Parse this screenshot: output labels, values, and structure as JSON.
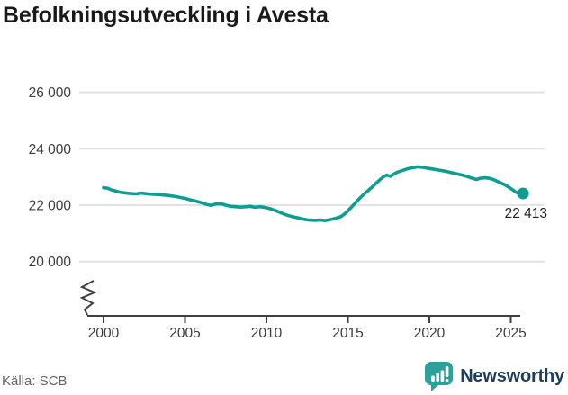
{
  "title": "Befolkningsutveckling i Avesta",
  "footer": {
    "source": "Källa: SCB",
    "brand": "Newsworthy"
  },
  "colors": {
    "line": "#0d9e91",
    "grid": "#e2e2e2",
    "axis": "#3f3f3f",
    "tick_label": "#3c3c3c",
    "annotation": "#1f1f1f",
    "brand_icon": "#2f9f99",
    "brand_text": "#1e3d5c"
  },
  "chart_data": {
    "type": "line",
    "title": "Befolkningsutveckling i Avesta",
    "xlabel": "",
    "ylabel": "",
    "x_ticks": [
      2000,
      2005,
      2010,
      2015,
      2020,
      2025
    ],
    "y_ticks": [
      20000,
      22000,
      24000,
      26000
    ],
    "y_tick_labels": [
      "20 000",
      "22 000",
      "24 000",
      "26 000"
    ],
    "xlim": [
      1999.5,
      2027
    ],
    "ylim": [
      19500,
      26800
    ],
    "grid": "horizontal",
    "legend": "none",
    "axis_break": true,
    "end_annotation": {
      "label": "22 413",
      "value": 22413,
      "x": 2025.75
    },
    "series": [
      {
        "color": "#0d9e91",
        "points": [
          [
            2000.0,
            22620
          ],
          [
            2000.25,
            22600
          ],
          [
            2000.5,
            22540
          ],
          [
            2000.75,
            22500
          ],
          [
            2001.0,
            22460
          ],
          [
            2001.5,
            22420
          ],
          [
            2002.0,
            22400
          ],
          [
            2002.3,
            22430
          ],
          [
            2002.7,
            22400
          ],
          [
            2003.0,
            22390
          ],
          [
            2003.5,
            22370
          ],
          [
            2004.0,
            22340
          ],
          [
            2004.5,
            22300
          ],
          [
            2005.0,
            22240
          ],
          [
            2005.3,
            22190
          ],
          [
            2005.6,
            22150
          ],
          [
            2006.0,
            22090
          ],
          [
            2006.3,
            22030
          ],
          [
            2006.6,
            21990
          ],
          [
            2006.9,
            22040
          ],
          [
            2007.2,
            22050
          ],
          [
            2007.5,
            22000
          ],
          [
            2007.8,
            21960
          ],
          [
            2008.0,
            21950
          ],
          [
            2008.4,
            21930
          ],
          [
            2008.8,
            21945
          ],
          [
            2009.0,
            21960
          ],
          [
            2009.3,
            21925
          ],
          [
            2009.6,
            21945
          ],
          [
            2010.0,
            21910
          ],
          [
            2010.3,
            21860
          ],
          [
            2010.6,
            21800
          ],
          [
            2011.0,
            21700
          ],
          [
            2011.3,
            21640
          ],
          [
            2011.6,
            21590
          ],
          [
            2012.0,
            21540
          ],
          [
            2012.3,
            21500
          ],
          [
            2012.6,
            21470
          ],
          [
            2013.0,
            21460
          ],
          [
            2013.3,
            21475
          ],
          [
            2013.6,
            21450
          ],
          [
            2014.0,
            21500
          ],
          [
            2014.3,
            21540
          ],
          [
            2014.6,
            21600
          ],
          [
            2014.8,
            21690
          ],
          [
            2015.0,
            21800
          ],
          [
            2015.25,
            21950
          ],
          [
            2015.5,
            22110
          ],
          [
            2015.75,
            22260
          ],
          [
            2016.0,
            22400
          ],
          [
            2016.25,
            22520
          ],
          [
            2016.5,
            22650
          ],
          [
            2016.75,
            22790
          ],
          [
            2017.0,
            22920
          ],
          [
            2017.2,
            23010
          ],
          [
            2017.4,
            23070
          ],
          [
            2017.6,
            23020
          ],
          [
            2017.8,
            23090
          ],
          [
            2018.0,
            23160
          ],
          [
            2018.3,
            23220
          ],
          [
            2018.6,
            23280
          ],
          [
            2019.0,
            23330
          ],
          [
            2019.3,
            23360
          ],
          [
            2019.6,
            23340
          ],
          [
            2020.0,
            23300
          ],
          [
            2020.3,
            23270
          ],
          [
            2020.6,
            23240
          ],
          [
            2021.0,
            23200
          ],
          [
            2021.3,
            23160
          ],
          [
            2021.6,
            23120
          ],
          [
            2022.0,
            23070
          ],
          [
            2022.3,
            23020
          ],
          [
            2022.6,
            22960
          ],
          [
            2022.9,
            22910
          ],
          [
            2023.1,
            22950
          ],
          [
            2023.4,
            22970
          ],
          [
            2023.7,
            22950
          ],
          [
            2024.0,
            22890
          ],
          [
            2024.3,
            22810
          ],
          [
            2024.6,
            22730
          ],
          [
            2024.9,
            22630
          ],
          [
            2025.1,
            22550
          ],
          [
            2025.3,
            22470
          ],
          [
            2025.5,
            22400
          ],
          [
            2025.65,
            22350
          ],
          [
            2025.75,
            22413
          ]
        ]
      }
    ]
  }
}
